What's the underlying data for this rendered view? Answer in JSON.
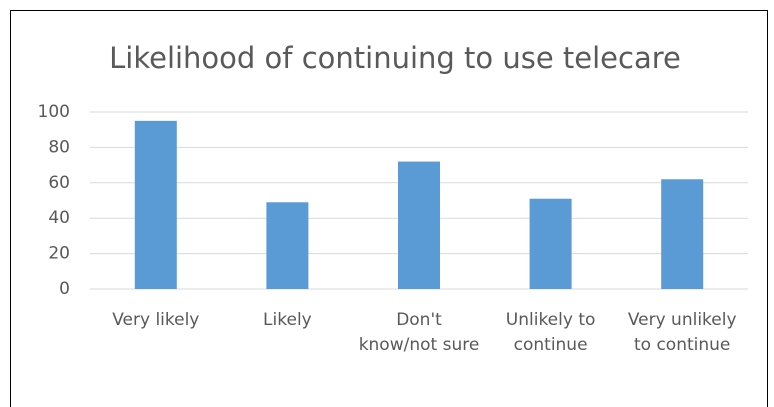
{
  "chart_data": {
    "type": "bar",
    "title": "Likelihood of continuing to use telecare",
    "categories": [
      "Very likely",
      "Likely",
      "Don't know/not sure",
      "Unlikely to continue",
      "Very unlikely to continue"
    ],
    "values": [
      95,
      49,
      72,
      51,
      62
    ],
    "color": "#5b9bd5",
    "ylim": [
      0,
      100
    ],
    "yticks": [
      0,
      20,
      40,
      60,
      80,
      100
    ],
    "grid": true
  }
}
